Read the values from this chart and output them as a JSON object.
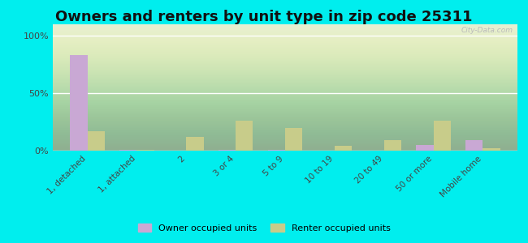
{
  "title": "Owners and renters by unit type in zip code 25311",
  "categories": [
    "1, detached",
    "1, attached",
    "2",
    "3 or 4",
    "5 to 9",
    "10 to 19",
    "20 to 49",
    "50 or more",
    "Mobile home"
  ],
  "owner_values": [
    83,
    1,
    0,
    0.5,
    0.5,
    0,
    0,
    5,
    9
  ],
  "renter_values": [
    17,
    0.5,
    12,
    26,
    20,
    4,
    9,
    26,
    2
  ],
  "owner_color": "#c9a8d4",
  "renter_color": "#c8cc8a",
  "plot_bg": "#e8f0d8",
  "outer_bg": "#00eeee",
  "yticks": [
    0,
    50,
    100
  ],
  "ylim": [
    0,
    110
  ],
  "bar_width": 0.35,
  "title_fontsize": 13,
  "watermark": "City-Data.com"
}
